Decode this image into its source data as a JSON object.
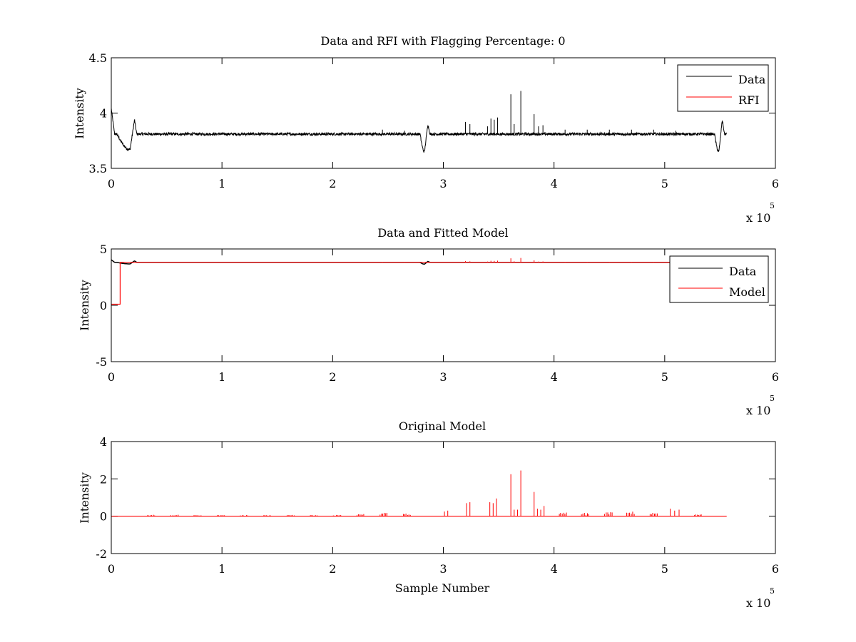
{
  "chart_data": [
    {
      "type": "line",
      "title": "Data and RFI with Flagging Percentage: 0",
      "xlabel": "",
      "ylabel": "Intensity",
      "xlim": [
        0,
        600000
      ],
      "ylim": [
        3.5,
        4.5
      ],
      "xticks": [
        0,
        1,
        2,
        3,
        4,
        5,
        6
      ],
      "yticks": [
        "3.5",
        "4",
        "4.5"
      ],
      "x_multiplier_base": "x 10",
      "x_multiplier_exp": "5",
      "legend_position": "top-right",
      "grid": false,
      "baseline": 3.81,
      "noise": 0.012,
      "samples_end": 556000,
      "dips": [
        {
          "start": 5000,
          "bottom": 17000,
          "end": 21000,
          "peak": 23000,
          "min": 3.67,
          "max": 3.94
        },
        {
          "start": 279000,
          "bottom": 283000,
          "end": 286000,
          "peak": 288000,
          "min": 3.65,
          "max": 3.9
        },
        {
          "start": 545000,
          "bottom": 549000,
          "end": 552000,
          "peak": 554000,
          "min": 3.65,
          "max": 3.94
        }
      ],
      "start_value": 4.04,
      "spikes": [
        {
          "x": 320000,
          "y": 3.92
        },
        {
          "x": 324000,
          "y": 3.9
        },
        {
          "x": 340000,
          "y": 3.88
        },
        {
          "x": 343000,
          "y": 3.95
        },
        {
          "x": 346000,
          "y": 3.94
        },
        {
          "x": 349000,
          "y": 3.96
        },
        {
          "x": 361000,
          "y": 4.17
        },
        {
          "x": 364000,
          "y": 3.9
        },
        {
          "x": 370000,
          "y": 4.2
        },
        {
          "x": 382000,
          "y": 3.99
        },
        {
          "x": 386000,
          "y": 3.88
        },
        {
          "x": 390000,
          "y": 3.89
        },
        {
          "x": 410000,
          "y": 3.85
        },
        {
          "x": 430000,
          "y": 3.85
        },
        {
          "x": 450000,
          "y": 3.85
        },
        {
          "x": 470000,
          "y": 3.85
        },
        {
          "x": 490000,
          "y": 3.85
        },
        {
          "x": 510000,
          "y": 3.84
        },
        {
          "x": 245000,
          "y": 3.85
        },
        {
          "x": 265000,
          "y": 3.84
        }
      ],
      "series": [
        {
          "name": "Data",
          "color": "#000000"
        },
        {
          "name": "RFI",
          "color": "#ff0000"
        }
      ]
    },
    {
      "type": "line",
      "title": "Data and Fitted Model",
      "xlabel": "",
      "ylabel": "Intensity",
      "xlim": [
        0,
        600000
      ],
      "ylim": [
        -5,
        5
      ],
      "xticks": [
        0,
        1,
        2,
        3,
        4,
        5,
        6
      ],
      "yticks": [
        "-5",
        "0",
        "5"
      ],
      "x_multiplier_base": "x 10",
      "x_multiplier_exp": "5",
      "legend_position": "top-right",
      "grid": false,
      "model_step_x": 8000,
      "model_low": 0.1,
      "model_high": 3.81,
      "series": [
        {
          "name": "Data",
          "color": "#000000"
        },
        {
          "name": "Model",
          "color": "#ff0000"
        }
      ]
    },
    {
      "type": "line",
      "title": "Original Model",
      "xlabel": "Sample Number",
      "ylabel": "Intensity",
      "xlim": [
        0,
        600000
      ],
      "ylim": [
        -2,
        4
      ],
      "xticks": [
        0,
        1,
        2,
        3,
        4,
        5,
        6
      ],
      "yticks": [
        "-2",
        "0",
        "2",
        "4"
      ],
      "x_multiplier_base": "x 10",
      "x_multiplier_exp": "5",
      "grid": false,
      "samples_end": 556000,
      "series": [
        {
          "color": "#ff0000"
        }
      ],
      "big_spikes": [
        {
          "x": 321000,
          "y": 0.7
        },
        {
          "x": 324000,
          "y": 0.75
        },
        {
          "x": 342000,
          "y": 0.75
        },
        {
          "x": 345000,
          "y": 0.7
        },
        {
          "x": 348000,
          "y": 0.95
        },
        {
          "x": 361000,
          "y": 2.25
        },
        {
          "x": 364000,
          "y": 0.35
        },
        {
          "x": 367000,
          "y": 0.35
        },
        {
          "x": 370000,
          "y": 2.45
        },
        {
          "x": 382000,
          "y": 1.3
        },
        {
          "x": 385000,
          "y": 0.4
        },
        {
          "x": 388000,
          "y": 0.35
        },
        {
          "x": 391000,
          "y": 0.55
        },
        {
          "x": 301000,
          "y": 0.25
        },
        {
          "x": 304000,
          "y": 0.3
        },
        {
          "x": 505000,
          "y": 0.4
        },
        {
          "x": 509000,
          "y": 0.3
        },
        {
          "x": 513000,
          "y": 0.35
        }
      ],
      "cluster_centers": [
        36000,
        57000,
        78000,
        99000,
        120000,
        141000,
        162000,
        183000,
        204000,
        225000,
        246000,
        267000,
        408000,
        428000,
        449000,
        469000,
        490000,
        530000
      ],
      "cluster_heights": [
        0.08,
        0.08,
        0.06,
        0.06,
        0.06,
        0.06,
        0.07,
        0.07,
        0.07,
        0.12,
        0.2,
        0.15,
        0.2,
        0.18,
        0.22,
        0.25,
        0.22,
        0.1
      ]
    }
  ]
}
